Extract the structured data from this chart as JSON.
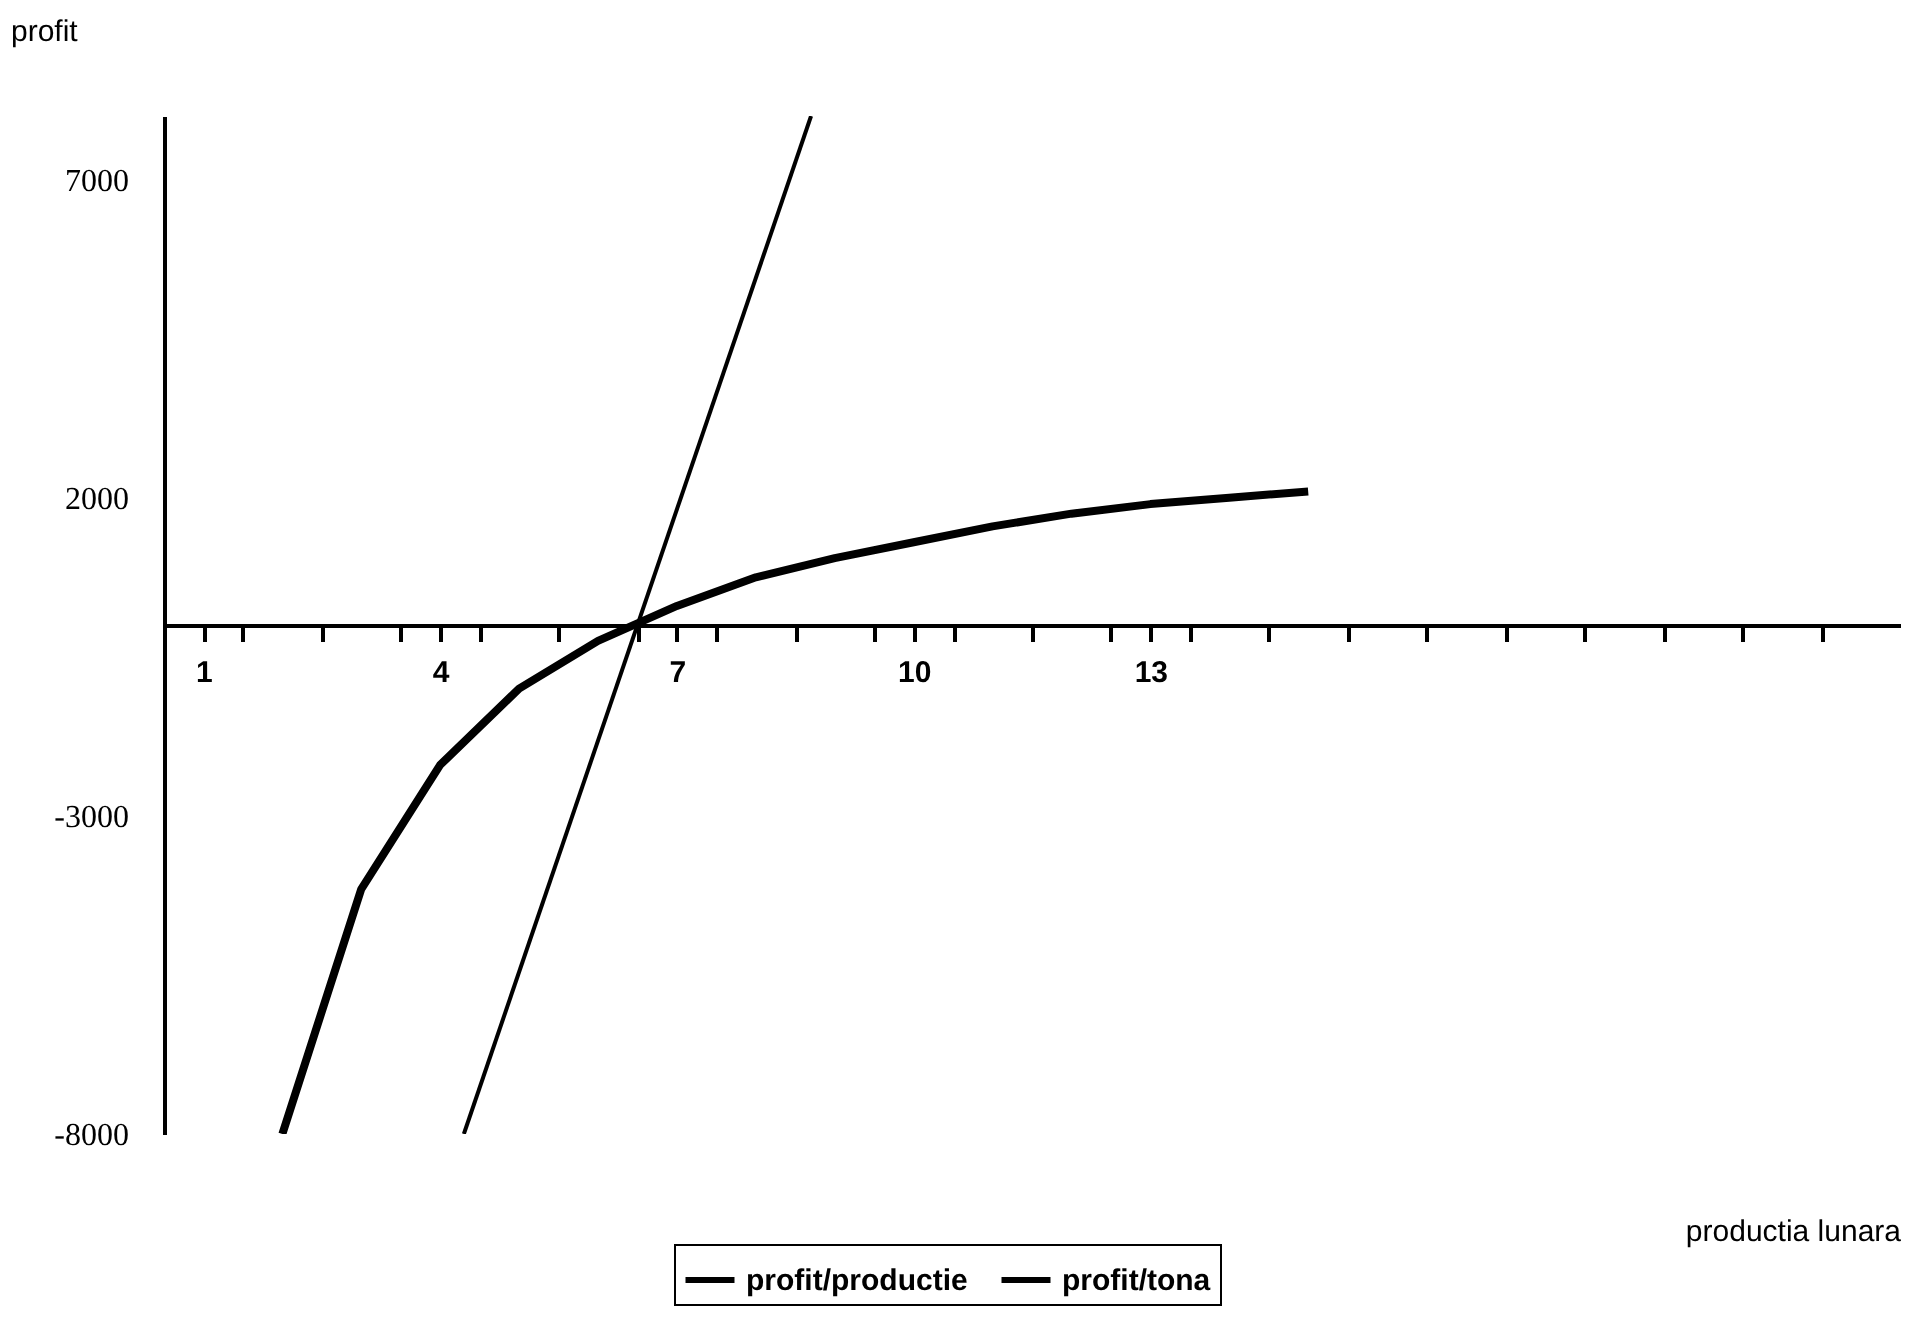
{
  "chart_data": {
    "type": "line",
    "xlabel": "productia lunara",
    "ylabel": "profit",
    "xlim": [
      0.5,
      22.5
    ],
    "ylim": [
      -8000,
      8000
    ],
    "xticks": [
      {
        "value": 1,
        "label": "1"
      },
      {
        "value": 4,
        "label": "4"
      },
      {
        "value": 7,
        "label": "7"
      },
      {
        "value": 10,
        "label": "10"
      },
      {
        "value": 13,
        "label": "13"
      },
      {
        "value": 1.5,
        "label": null
      },
      {
        "value": 2.5,
        "label": null
      },
      {
        "value": 3.5,
        "label": null
      },
      {
        "value": 4.5,
        "label": null
      },
      {
        "value": 5.5,
        "label": null
      },
      {
        "value": 6.5,
        "label": null
      },
      {
        "value": 7.5,
        "label": null
      },
      {
        "value": 8.5,
        "label": null
      },
      {
        "value": 9.5,
        "label": null
      },
      {
        "value": 10.5,
        "label": null
      },
      {
        "value": 11.5,
        "label": null
      },
      {
        "value": 12.5,
        "label": null
      },
      {
        "value": 13.5,
        "label": null
      },
      {
        "value": 14.5,
        "label": null
      },
      {
        "value": 15.5,
        "label": null
      },
      {
        "value": 16.5,
        "label": null
      },
      {
        "value": 17.5,
        "label": null
      },
      {
        "value": 18.5,
        "label": null
      },
      {
        "value": 19.5,
        "label": null
      },
      {
        "value": 20.5,
        "label": null
      },
      {
        "value": 21.5,
        "label": null
      }
    ],
    "yticks": [
      -8000,
      -3000,
      2000,
      7000
    ],
    "grid": false,
    "legend": "bottom",
    "marker": "none",
    "line_style": "solid",
    "series": [
      {
        "name": "profit/productie",
        "color": "#000000",
        "x": [
          2,
          3,
          4,
          5,
          6,
          7,
          8,
          9,
          10,
          11,
          12,
          13,
          14,
          15
        ],
        "values": [
          -8000,
          -4150,
          -2200,
          -1000,
          -250,
          300,
          750,
          1050,
          1300,
          1550,
          1750,
          1900,
          2000,
          2100
        ]
      },
      {
        "name": "profit/tona",
        "color": "#000000",
        "x": [
          4.3,
          8.7
        ],
        "values": [
          -8000,
          8000
        ]
      }
    ]
  }
}
